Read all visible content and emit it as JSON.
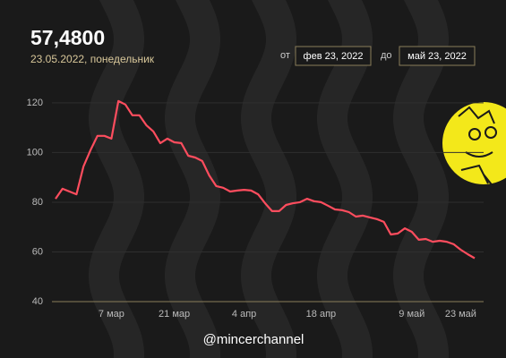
{
  "header": {
    "value": "57,4800",
    "subtitle": "23.05.2022, понедельник"
  },
  "range": {
    "from_label": "от",
    "from": "фев 23, 2022",
    "to_label": "до",
    "to": "май 23, 2022"
  },
  "chart_data": {
    "type": "line",
    "categories": [
      null,
      null,
      null,
      null,
      null,
      null,
      null,
      null,
      "7 мар",
      null,
      null,
      null,
      null,
      null,
      null,
      null,
      null,
      "21 мар",
      null,
      null,
      null,
      null,
      null,
      null,
      null,
      null,
      null,
      "4 апр",
      null,
      null,
      null,
      null,
      null,
      null,
      null,
      null,
      null,
      null,
      "18 апр",
      null,
      null,
      null,
      null,
      null,
      null,
      null,
      null,
      null,
      null,
      null,
      null,
      "9 май",
      null,
      null,
      null,
      null,
      null,
      null,
      "23 май",
      null,
      null
    ],
    "values": [
      81.4,
      85.4,
      84.3,
      83.2,
      94.4,
      100.9,
      106.7,
      106.7,
      105.6,
      120.7,
      119.3,
      115,
      115,
      111,
      108.5,
      103.8,
      105.6,
      104.1,
      103.8,
      98.7,
      98,
      96.6,
      90.8,
      86.5,
      85.8,
      84.3,
      84.7,
      85,
      84.7,
      83.2,
      79.6,
      76.4,
      76.4,
      78.9,
      79.6,
      80,
      81.4,
      80.4,
      80,
      78.6,
      77.1,
      76.8,
      76,
      74.2,
      74.6,
      73.9,
      73.2,
      72.1,
      67,
      67.4,
      69.5,
      68.1,
      64.9,
      65.2,
      64.1,
      64.5,
      64.1,
      63.1,
      60.9,
      59.1,
      57.48
    ],
    "color": "#ff4d5e",
    "ylim": [
      40,
      125
    ],
    "yticks": [
      40,
      60,
      80,
      100,
      120
    ],
    "grid": true
  },
  "footer": "@mincerchannel"
}
